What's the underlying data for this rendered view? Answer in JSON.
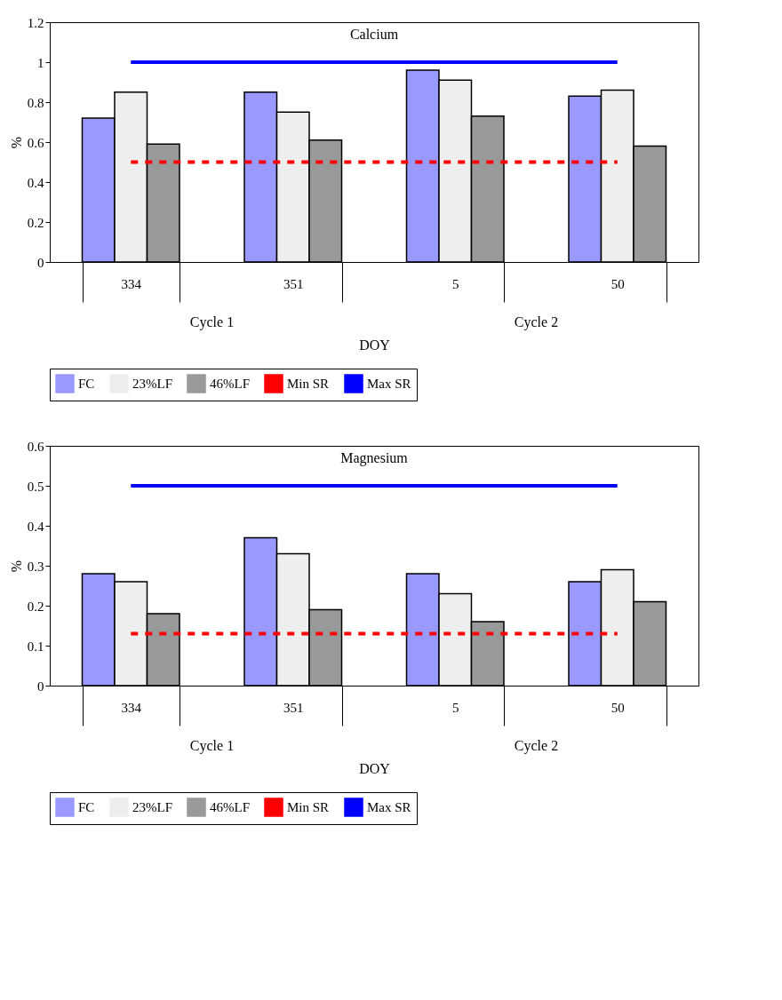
{
  "chart_data": [
    {
      "type": "bar",
      "title": "Calcium",
      "xlabel": "DOY",
      "ylabel": "%",
      "categories": [
        "334",
        "351",
        "5",
        "50"
      ],
      "annotations": [
        "Cycle 1",
        "Cycle 2"
      ],
      "series": [
        {
          "name": "FC",
          "color": "#9999ff",
          "values": [
            0.72,
            0.85,
            0.96,
            0.83
          ]
        },
        {
          "name": "23%LF",
          "color": "#eeeeee",
          "values": [
            0.85,
            0.75,
            0.91,
            0.86
          ]
        },
        {
          "name": "46%LF",
          "color": "#999999",
          "values": [
            0.59,
            0.61,
            0.73,
            0.58
          ]
        },
        {
          "name": "Min SR",
          "type": "line",
          "color": "#ff0000",
          "line_style": "dashed",
          "values": [
            0.5,
            0.5,
            0.5,
            0.5
          ]
        },
        {
          "name": "Max SR",
          "type": "line",
          "color": "#0000ff",
          "line_style": "solid",
          "values": [
            1.0,
            1.0,
            1.0,
            1.0
          ]
        }
      ],
      "ylim": [
        0,
        1.2
      ],
      "yticks": [
        0,
        0.2,
        0.4,
        0.6,
        0.8,
        1,
        1.2
      ],
      "grid": false,
      "legend": "bottom"
    },
    {
      "type": "bar",
      "title": "Magnesium",
      "xlabel": "DOY",
      "ylabel": "%",
      "categories": [
        "334",
        "351",
        "5",
        "50"
      ],
      "annotations": [
        "Cycle 1",
        "Cycle 2"
      ],
      "series": [
        {
          "name": "FC",
          "color": "#9999ff",
          "values": [
            0.28,
            0.37,
            0.28,
            0.26
          ]
        },
        {
          "name": "23%LF",
          "color": "#eeeeee",
          "values": [
            0.26,
            0.33,
            0.23,
            0.29
          ]
        },
        {
          "name": "46%LF",
          "color": "#999999",
          "values": [
            0.18,
            0.19,
            0.16,
            0.21
          ]
        },
        {
          "name": "Min SR",
          "type": "line",
          "color": "#ff0000",
          "line_style": "dashed",
          "values": [
            0.13,
            0.13,
            0.13,
            0.13
          ]
        },
        {
          "name": "Max SR",
          "type": "line",
          "color": "#0000ff",
          "line_style": "solid",
          "values": [
            0.5,
            0.5,
            0.5,
            0.5
          ]
        }
      ],
      "ylim": [
        0,
        0.6
      ],
      "yticks": [
        0,
        0.1,
        0.2,
        0.3,
        0.4,
        0.5,
        0.6
      ],
      "grid": false,
      "legend": "bottom"
    }
  ]
}
